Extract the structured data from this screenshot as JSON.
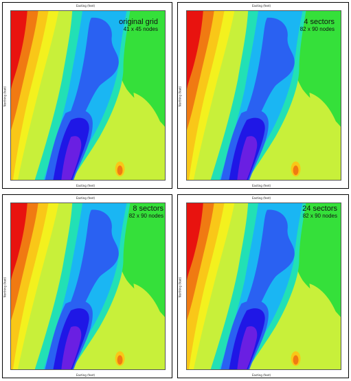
{
  "axis": {
    "x_label": "Easting (feet)",
    "y_label": "Northing (feet)"
  },
  "panels": [
    {
      "title": "original grid",
      "subtitle": "41 x 45 nodes"
    },
    {
      "title": "4 sectors",
      "subtitle": "82 x 90 nodes"
    },
    {
      "title": "8 sectors",
      "subtitle": "82 x 90 nodes"
    },
    {
      "title": "24 sectors",
      "subtitle": "82 x 90 nodes"
    }
  ],
  "colors": {
    "band1": "#e8130f",
    "band2": "#f07a12",
    "band3": "#f9c718",
    "band4": "#f3f11e",
    "band5": "#c8f03a",
    "band6": "#35e03a",
    "band7": "#22e0b5",
    "band8": "#1ab6f3",
    "band9": "#2a61f2",
    "band10": "#1f17e6",
    "band11": "#6a1fe2"
  }
}
